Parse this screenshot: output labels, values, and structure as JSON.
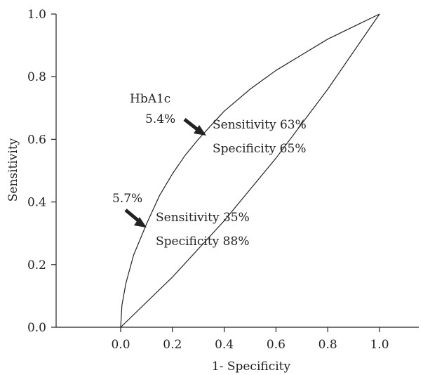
{
  "chart_data": {
    "type": "line",
    "title": "",
    "xlabel": "1- Specificity",
    "ylabel": "Sensitivity",
    "xlim": [
      0,
      1
    ],
    "ylim": [
      0,
      1
    ],
    "xticks": [
      "0.0",
      "0.2",
      "0.4",
      "0.6",
      "0.8",
      "1.0"
    ],
    "yticks": [
      "0.0",
      "0.2",
      "0.4",
      "0.6",
      "0.8",
      "1.0"
    ],
    "grid": false,
    "legend": "none",
    "series": [
      {
        "x": [
          0.0,
          0.005,
          0.02,
          0.05,
          0.1,
          0.15,
          0.2,
          0.25,
          0.3,
          0.35,
          0.4,
          0.5,
          0.6,
          0.7,
          0.8,
          0.9,
          1.0
        ],
        "y": [
          0.0,
          0.07,
          0.14,
          0.23,
          0.33,
          0.42,
          0.49,
          0.55,
          0.6,
          0.645,
          0.69,
          0.76,
          0.82,
          0.87,
          0.92,
          0.96,
          1.0
        ]
      },
      {
        "x": [
          0.0,
          0.2,
          0.4,
          0.6,
          0.8,
          1.0
        ],
        "y": [
          0.0,
          0.16,
          0.34,
          0.54,
          0.76,
          1.0
        ]
      }
    ],
    "annotations": [
      {
        "lines": [
          "HbA1c",
          "5.4%"
        ],
        "point": {
          "x": 0.33,
          "y": 0.61
        }
      },
      {
        "lines": [
          "Sensitivity 63%",
          "Specificity 65%"
        ]
      },
      {
        "lines": [
          "5.7%"
        ],
        "point": {
          "x": 0.1,
          "y": 0.31
        }
      },
      {
        "lines": [
          "Sensitivity 35%",
          "Specificity 88%"
        ]
      }
    ]
  }
}
